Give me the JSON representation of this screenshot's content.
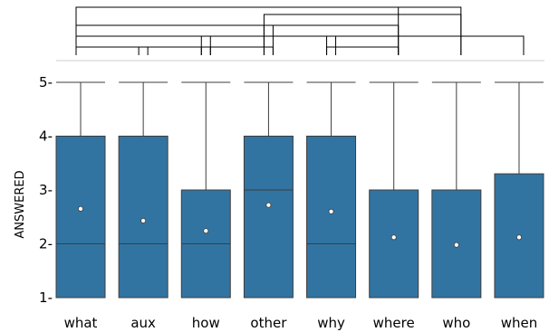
{
  "chart_data": {
    "type": "box",
    "title": "",
    "xlabel": "",
    "ylabel": "ANSWERED",
    "ylim": [
      1,
      5.2
    ],
    "yticks": [
      1,
      2,
      3,
      4,
      5
    ],
    "ytick_labels": [
      "1-",
      "2-",
      "3-",
      "4-",
      "5-"
    ],
    "grid": false,
    "legend": "none",
    "box_color": "#3274a1",
    "categories": [
      "what",
      "aux",
      "how",
      "other",
      "why",
      "where",
      "who",
      "when"
    ],
    "boxes": [
      {
        "category": "what",
        "min": 1,
        "q1": 1,
        "median": 2,
        "q3": 4,
        "max": 5,
        "mean": 2.65
      },
      {
        "category": "aux",
        "min": 1,
        "q1": 1,
        "median": 2,
        "q3": 4,
        "max": 5,
        "mean": 2.43
      },
      {
        "category": "how",
        "min": 1,
        "q1": 1,
        "median": 2,
        "q3": 3,
        "max": 5,
        "mean": 2.24
      },
      {
        "category": "other",
        "min": 1,
        "q1": 1,
        "median": 3,
        "q3": 4,
        "max": 5,
        "mean": 2.72
      },
      {
        "category": "why",
        "min": 1,
        "q1": 1,
        "median": 2,
        "q3": 4,
        "max": 5,
        "mean": 2.6
      },
      {
        "category": "where",
        "min": 1,
        "q1": 1,
        "median": 1,
        "q3": 3,
        "max": 5,
        "mean": 2.12
      },
      {
        "category": "who",
        "min": 1,
        "q1": 1,
        "median": 1,
        "q3": 3,
        "max": 5,
        "mean": 1.98
      },
      {
        "category": "when",
        "min": 1,
        "q1": 1,
        "median": 1,
        "q3": 3.3,
        "max": 5,
        "mean": 2.12
      }
    ],
    "significance_brackets": [
      {
        "from": "what",
        "to": "who"
      },
      {
        "from": "what",
        "to": "where"
      },
      {
        "from": "what",
        "to": "other"
      },
      {
        "from": "other",
        "to": "who"
      },
      {
        "from": "what",
        "to": "how"
      },
      {
        "from": "how",
        "to": "why"
      },
      {
        "from": "why",
        "to": "when"
      },
      {
        "from": "other",
        "to": "where"
      },
      {
        "from": "what",
        "to": "aux"
      },
      {
        "from": "aux",
        "to": "how"
      },
      {
        "from": "how",
        "to": "other"
      },
      {
        "from": "why",
        "to": "where"
      }
    ]
  }
}
